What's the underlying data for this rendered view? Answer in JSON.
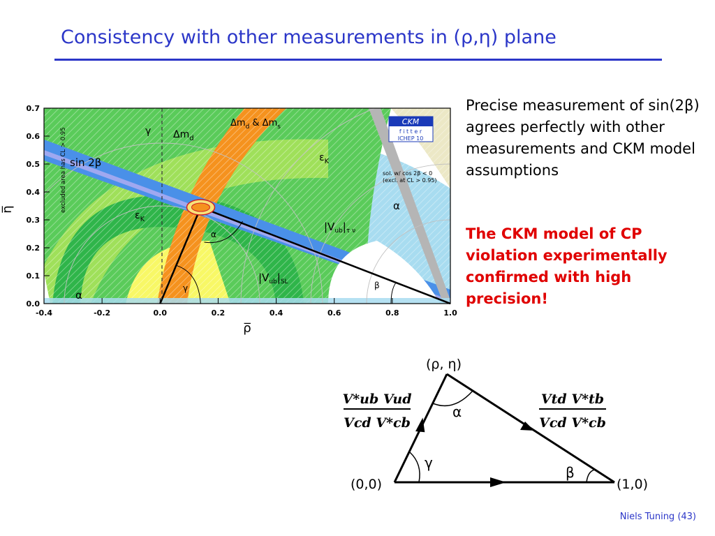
{
  "title": "Consistency with other measurements in (ρ,η) plane",
  "text": {
    "para1": "Precise measurement of sin(2β) agrees perfectly with other measurements and CKM model assumptions",
    "para2": "The CKM model of CP violation experimentally confirmed with high precision!"
  },
  "footer": "Niels Tuning (43)",
  "chart_data": {
    "type": "scatter",
    "xlabel": "ρ̅",
    "ylabel": "η̅",
    "xlim": [
      -0.4,
      1.0
    ],
    "ylim": [
      0.0,
      0.7
    ],
    "x_ticks": [
      "-0.4",
      "-0.2",
      "0.0",
      "0.2",
      "0.4",
      "0.6",
      "0.8",
      "1.0"
    ],
    "y_ticks": [
      "0.0",
      "0.1",
      "0.2",
      "0.3",
      "0.4",
      "0.5",
      "0.6",
      "0.7"
    ],
    "apex": {
      "x": 0.14,
      "y": 0.345
    },
    "labels": {
      "gamma_top": "γ",
      "dmd": "Δm",
      "dmd_sub": "d",
      "dmd_dms": "Δm",
      "dmd_dms_sub1": "d",
      "dmd_dms_amp": " & Δm",
      "dmd_dms_sub2": "s",
      "sin2b": "sin 2β",
      "epsK_right": "ε",
      "epsK_right_sub": "K",
      "epsK_left": "ε",
      "epsK_left_sub": "K",
      "vub_enu_open": "|V",
      "vub_enu_sub1": "ub",
      "vub_enu_close": "|",
      "vub_enu_sub2": "τ ν",
      "vub_sl_open": "|V",
      "vub_sl_sub1": "ub",
      "vub_sl_close": "|",
      "vub_sl_sub2": "SL",
      "alpha_right": "α",
      "alpha_left": "α",
      "alpha_tri": "α",
      "gamma_tri": "γ",
      "beta_tri": "β",
      "excluded": "excluded area has CL > 0.95",
      "sol_line1": "sol. w/ cos 2β < 0",
      "sol_line2": "(excl. at CL > 0.95)",
      "ckm_logo": "CKM",
      "fitter_logo": "f i t t e r",
      "ichep": "ICHEP 10"
    }
  },
  "triangle": {
    "apex_label": "(ρ, η)",
    "origin_label": "(0,0)",
    "one_label": "(1,0)",
    "alpha": "α",
    "gamma": "γ",
    "beta": "β",
    "left_num": "V*ub Vud",
    "left_den": "Vcd V*cb",
    "right_num": "Vtd V*tb",
    "right_den": "Vcd V*cb"
  }
}
